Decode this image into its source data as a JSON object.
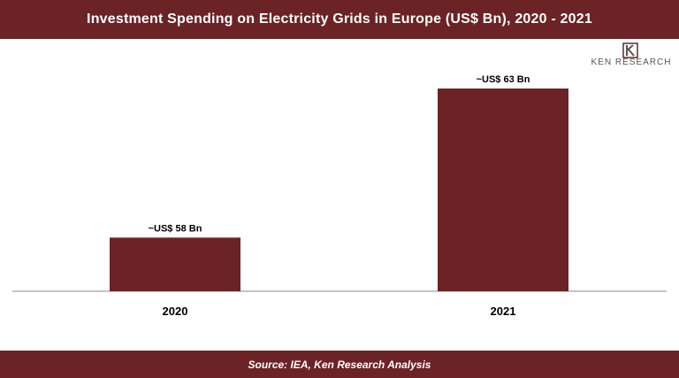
{
  "title": "Investment Spending on Electricity Grids in Europe (US$ Bn), 2020 - 2021",
  "source": "Source: IEA, Ken Research Analysis",
  "logo": {
    "text": "KEN RESEARCH",
    "icon": "ken-research-k-logo"
  },
  "colors": {
    "brand": "#6b2326",
    "bar": "#6b2326",
    "axis": "#888888"
  },
  "chart_data": {
    "type": "bar",
    "categories": [
      "2020",
      "2021"
    ],
    "values": [
      58,
      63
    ],
    "data_labels": [
      "~US$ 58 Bn",
      "~US$ 63 Bn"
    ],
    "title": "Investment Spending on Electricity Grids in Europe (US$ Bn), 2020 - 2021",
    "xlabel": "",
    "ylabel": "",
    "grid": false
  }
}
